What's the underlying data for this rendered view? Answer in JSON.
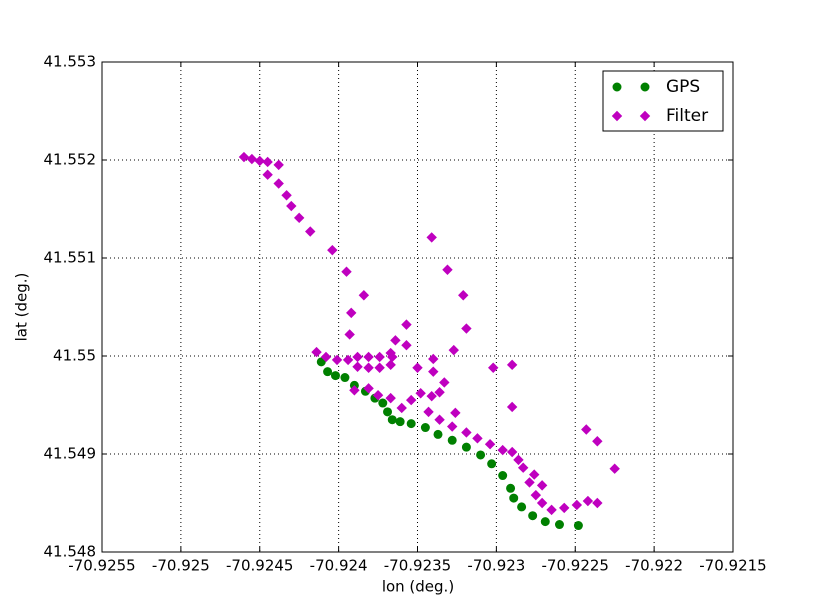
{
  "chart_data": {
    "type": "scatter",
    "xlabel": "lon (deg.)",
    "ylabel": "lat (deg.)",
    "xlim": [
      -70.9255,
      -70.9215
    ],
    "ylim": [
      41.548,
      41.553
    ],
    "xticks": [
      -70.9255,
      -70.925,
      -70.9245,
      -70.924,
      -70.9235,
      -70.923,
      -70.9225,
      -70.922,
      -70.9215
    ],
    "yticks": [
      41.548,
      41.549,
      41.55,
      41.551,
      41.552,
      41.553
    ],
    "grid": true,
    "legend": "upper right",
    "series": [
      {
        "name": "GPS",
        "color": "#008000",
        "marker": "circle",
        "x": [
          -70.92411,
          -70.92407,
          -70.92402,
          -70.92396,
          -70.9239,
          -70.92383,
          -70.92377,
          -70.92372,
          -70.92369,
          -70.92366,
          -70.92361,
          -70.92354,
          -70.92345,
          -70.92337,
          -70.92328,
          -70.92319,
          -70.9231,
          -70.92303,
          -70.92296,
          -70.92291,
          -70.92289,
          -70.92284,
          -70.92277,
          -70.92269,
          -70.9226,
          -70.92248
        ],
        "values": [
          41.54994,
          41.54984,
          41.5498,
          41.54978,
          41.5497,
          41.54964,
          41.54957,
          41.54952,
          41.54943,
          41.54935,
          41.54933,
          41.54931,
          41.54927,
          41.5492,
          41.54914,
          41.54907,
          41.54899,
          41.5489,
          41.54878,
          41.54865,
          41.54855,
          41.54846,
          41.54837,
          41.54831,
          41.54828,
          41.54827
        ]
      },
      {
        "name": "Filter",
        "color": "#bf00bf",
        "marker": "diamond",
        "x": [
          -70.9246,
          -70.92455,
          -70.9245,
          -70.92445,
          -70.92438,
          -70.92445,
          -70.92438,
          -70.92433,
          -70.9243,
          -70.92425,
          -70.92418,
          -70.92404,
          -70.92395,
          -70.92384,
          -70.92392,
          -70.92393,
          -70.92414,
          -70.92408,
          -70.92401,
          -70.92394,
          -70.92388,
          -70.92381,
          -70.92374,
          -70.92366,
          -70.92388,
          -70.92381,
          -70.92374,
          -70.92367,
          -70.92364,
          -70.92357,
          -70.9239,
          -70.92381,
          -70.92375,
          -70.92367,
          -70.9236,
          -70.92354,
          -70.92348,
          -70.92341,
          -70.92336,
          -70.92333,
          -70.9234,
          -70.9234,
          -70.92343,
          -70.92336,
          -70.92326,
          -70.92328,
          -70.92319,
          -70.92312,
          -70.92304,
          -70.92296,
          -70.9229,
          -70.92286,
          -70.92283,
          -70.92276,
          -70.92279,
          -70.92271,
          -70.92275,
          -70.92271,
          -70.92265,
          -70.92257,
          -70.92249,
          -70.92242,
          -70.92236,
          -70.92341,
          -70.92331,
          -70.92321,
          -70.92319,
          -70.92327,
          -70.92302,
          -70.9229,
          -70.9229,
          -70.92243,
          -70.92236,
          -70.92225,
          -70.92357,
          -70.92367,
          -70.9235
        ],
        "values": [
          41.55203,
          41.55201,
          41.55199,
          41.55198,
          41.55195,
          41.55185,
          41.55176,
          41.55164,
          41.55153,
          41.55141,
          41.55127,
          41.55108,
          41.55086,
          41.55062,
          41.55044,
          41.55022,
          41.55004,
          41.54999,
          41.54996,
          41.54996,
          41.54999,
          41.54999,
          41.54999,
          41.54999,
          41.54989,
          41.54988,
          41.54988,
          41.54991,
          41.55016,
          41.55032,
          41.54965,
          41.54967,
          41.5496,
          41.54957,
          41.54947,
          41.54955,
          41.54962,
          41.54959,
          41.54963,
          41.54973,
          41.54984,
          41.54997,
          41.54943,
          41.54935,
          41.54942,
          41.54928,
          41.54922,
          41.54916,
          41.5491,
          41.54904,
          41.54902,
          41.54894,
          41.54886,
          41.54879,
          41.54871,
          41.54868,
          41.54858,
          41.5485,
          41.54843,
          41.54845,
          41.54848,
          41.54852,
          41.5485,
          41.55121,
          41.55088,
          41.55062,
          41.55028,
          41.55006,
          41.54988,
          41.54991,
          41.54948,
          41.54925,
          41.54913,
          41.54885,
          41.55011,
          41.55003,
          41.54988
        ]
      }
    ]
  }
}
